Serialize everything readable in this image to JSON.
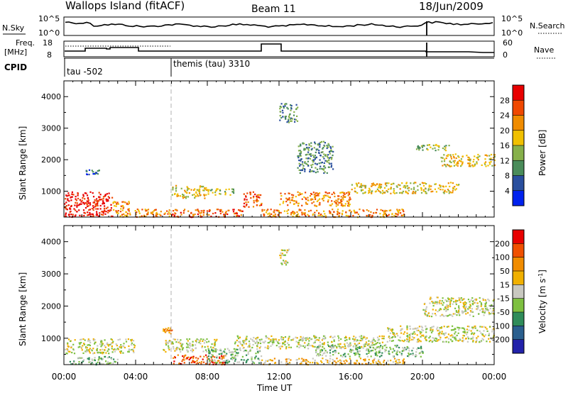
{
  "header": {
    "station": "Wallops Island (fitACF)",
    "beam": "Beam 11",
    "date": "18/Jun/2009"
  },
  "top_panels": {
    "nsky_label": "N.Sky",
    "nsearch_label": "N.Search",
    "nsky_ticks": [
      "10^5",
      "10^0"
    ],
    "nsearch_ticks": [
      "10^5",
      "10^0"
    ],
    "freq_label_1": "Freq.",
    "freq_label_2": "[MHz]",
    "freq_ticks": [
      "18",
      "8"
    ],
    "nave_label": "Nave",
    "nave_ticks": [
      "60",
      "0"
    ],
    "cpid_label": "CPID",
    "cpid_modes": [
      {
        "label": "tau -502",
        "start_hour": 0
      },
      {
        "label": "themis (tau) 3310",
        "start_hour": 6
      }
    ]
  },
  "chart_data": [
    {
      "type": "heatmap",
      "title": "",
      "xlabel": "Time UT",
      "ylabel": "Slant Range [km]",
      "x_range_hours": [
        0,
        24
      ],
      "ylim": [
        180,
        4500
      ],
      "x_ticks": [
        "00:00",
        "04:00",
        "08:00",
        "12:00",
        "16:00",
        "20:00",
        "00:00"
      ],
      "y_ticks": [
        "1000",
        "2000",
        "3000",
        "4000"
      ],
      "colorbar_label": "Power [dB]",
      "colorbar_ticks": [
        "4",
        "8",
        "12",
        "16",
        "20",
        "24",
        "28"
      ],
      "colorbar_colors": [
        "#0022ee",
        "#2a4f9e",
        "#4a8c5a",
        "#86b04a",
        "#f0c000",
        "#f08c00",
        "#f04800",
        "#e80000"
      ],
      "regions": [
        {
          "t0": 0.0,
          "t1": 2.7,
          "r0": 200,
          "r1": 1000,
          "level": 7
        },
        {
          "t0": 2.7,
          "t1": 3.7,
          "r0": 200,
          "r1": 700,
          "level": 5
        },
        {
          "t0": 3.5,
          "t1": 6.0,
          "r0": 200,
          "r1": 450,
          "level": 5
        },
        {
          "t0": 6.0,
          "t1": 10.0,
          "r0": 200,
          "r1": 450,
          "level": 6
        },
        {
          "t0": 6.0,
          "t1": 8.0,
          "r0": 800,
          "r1": 1200,
          "level": 4
        },
        {
          "t0": 8.0,
          "t1": 9.5,
          "r0": 900,
          "r1": 1100,
          "level": 3
        },
        {
          "t0": 10.0,
          "t1": 11.0,
          "r0": 500,
          "r1": 1000,
          "level": 6
        },
        {
          "t0": 11.0,
          "t1": 19.0,
          "r0": 200,
          "r1": 450,
          "level": 5
        },
        {
          "t0": 12.0,
          "t1": 16.0,
          "r0": 550,
          "r1": 1000,
          "level": 5
        },
        {
          "t0": 16.0,
          "t1": 22.0,
          "r0": 950,
          "r1": 1300,
          "level": 4
        },
        {
          "t0": 21.0,
          "t1": 24.0,
          "r0": 1800,
          "r1": 2200,
          "level": 4
        },
        {
          "t0": 19.5,
          "t1": 21.5,
          "r0": 2300,
          "r1": 2500,
          "level": 3
        },
        {
          "t0": 12.0,
          "t1": 13.0,
          "r0": 3200,
          "r1": 3800,
          "level": 2
        },
        {
          "t0": 1.2,
          "t1": 2.0,
          "r0": 1550,
          "r1": 1700,
          "level": 1
        },
        {
          "t0": 13.0,
          "t1": 15.0,
          "r0": 1600,
          "r1": 2600,
          "level": 2
        }
      ]
    },
    {
      "type": "heatmap",
      "title": "",
      "xlabel": "Time UT",
      "ylabel": "Slant Range [km]",
      "x_range_hours": [
        0,
        24
      ],
      "ylim": [
        180,
        4500
      ],
      "x_ticks": [
        "00:00",
        "04:00",
        "08:00",
        "12:00",
        "16:00",
        "20:00",
        "00:00"
      ],
      "y_ticks": [
        "1000",
        "2000",
        "3000",
        "4000"
      ],
      "colorbar_label": "Velocity [m s",
      "colorbar_unit_exp": "-1",
      "colorbar_unit_close": "]",
      "colorbar_ticks": [
        "200",
        "100",
        "50",
        "15",
        "-15",
        "-50",
        "-100",
        "-200"
      ],
      "colorbar_colors": [
        "#2222aa",
        "#2a5f8e",
        "#2f8c5a",
        "#7ec040",
        "#c8c8c0",
        "#f0b000",
        "#f08c00",
        "#f05000",
        "#e80000"
      ],
      "regions": [
        {
          "t0": 0.0,
          "t1": 4.0,
          "r0": 550,
          "r1": 1000,
          "level": 4
        },
        {
          "t0": 0.3,
          "t1": 3.0,
          "r0": 200,
          "r1": 450,
          "level": 3
        },
        {
          "t0": 5.5,
          "t1": 8.5,
          "r0": 600,
          "r1": 1000,
          "level": 4
        },
        {
          "t0": 6.0,
          "t1": 9.0,
          "r0": 200,
          "r1": 500,
          "level": 7
        },
        {
          "t0": 8.0,
          "t1": 11.0,
          "r0": 250,
          "r1": 700,
          "level": 3
        },
        {
          "t0": 9.5,
          "t1": 18.0,
          "r0": 700,
          "r1": 1100,
          "level": 4
        },
        {
          "t0": 11.0,
          "t1": 19.0,
          "r0": 200,
          "r1": 400,
          "level": 5
        },
        {
          "t0": 14.0,
          "t1": 20.0,
          "r0": 450,
          "r1": 800,
          "level": 3
        },
        {
          "t0": 18.0,
          "t1": 24.0,
          "r0": 900,
          "r1": 1400,
          "level": 4
        },
        {
          "t0": 20.0,
          "t1": 24.0,
          "r0": 1700,
          "r1": 2300,
          "level": 4
        },
        {
          "t0": 5.5,
          "t1": 6.0,
          "r0": 1150,
          "r1": 1350,
          "level": 6
        },
        {
          "t0": 12.0,
          "t1": 12.6,
          "r0": 3300,
          "r1": 3800,
          "level": 4
        }
      ]
    }
  ]
}
